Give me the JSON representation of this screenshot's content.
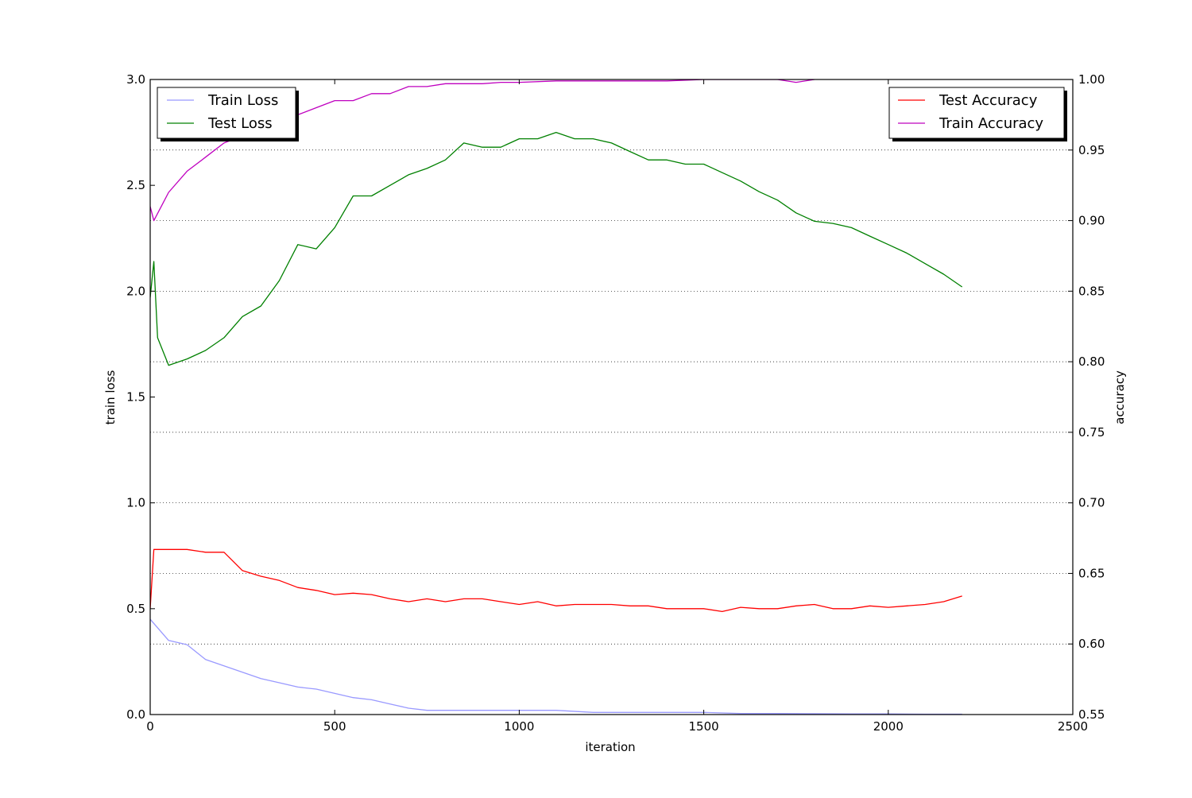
{
  "chart_data": {
    "type": "line",
    "xlabel": "iteration",
    "ylabel_left": "train loss",
    "ylabel_right": "accuracy",
    "xlim": [
      0,
      2500
    ],
    "ylim_left": [
      0,
      3.0
    ],
    "ylim_right": [
      0.55,
      1.0
    ],
    "grid": "dotted horizontal at right-axis ticks",
    "x_ticks": [
      "0",
      "500",
      "1000",
      "1500",
      "2000",
      "2500"
    ],
    "y_ticks_left": [
      "0.0",
      "0.5",
      "1.0",
      "1.5",
      "2.0",
      "2.5",
      "3.0"
    ],
    "y_ticks_right": [
      "0.55",
      "0.60",
      "0.65",
      "0.70",
      "0.75",
      "0.80",
      "0.85",
      "0.90",
      "0.95",
      "1.00"
    ],
    "legend_left": {
      "placement": "upper-left",
      "entries": [
        {
          "name": "Train Loss",
          "color": "#9999ff"
        },
        {
          "name": "Test Loss",
          "color": "#008000"
        }
      ]
    },
    "legend_right": {
      "placement": "upper-right",
      "entries": [
        {
          "name": "Test Accuracy",
          "color": "#ff0000"
        },
        {
          "name": "Train Accuracy",
          "color": "#bf00bf"
        }
      ]
    },
    "series": [
      {
        "name": "Train Loss",
        "axis": "left",
        "color": "#9999ff",
        "x": [
          0,
          50,
          100,
          150,
          200,
          250,
          300,
          350,
          400,
          450,
          500,
          550,
          600,
          650,
          700,
          750,
          800,
          850,
          900,
          950,
          1000,
          1100,
          1200,
          1300,
          1400,
          1500,
          1600,
          1700,
          1800,
          1900,
          2000,
          2100,
          2200
        ],
        "y": [
          0.45,
          0.35,
          0.33,
          0.26,
          0.23,
          0.2,
          0.17,
          0.15,
          0.13,
          0.12,
          0.1,
          0.08,
          0.07,
          0.05,
          0.03,
          0.02,
          0.02,
          0.02,
          0.02,
          0.02,
          0.02,
          0.02,
          0.01,
          0.01,
          0.01,
          0.01,
          0.005,
          0.005,
          0.004,
          0.003,
          0.003,
          0.002,
          0.002
        ]
      },
      {
        "name": "Test Loss",
        "axis": "left",
        "color": "#008000",
        "x": [
          0,
          10,
          20,
          50,
          100,
          150,
          200,
          250,
          300,
          350,
          400,
          450,
          500,
          550,
          600,
          650,
          700,
          750,
          800,
          850,
          900,
          950,
          1000,
          1050,
          1100,
          1150,
          1200,
          1250,
          1300,
          1350,
          1400,
          1450,
          1500,
          1550,
          1600,
          1650,
          1700,
          1750,
          1800,
          1850,
          1900,
          1950,
          2000,
          2050,
          2100,
          2150,
          2200
        ],
        "y": [
          1.97,
          2.14,
          1.78,
          1.65,
          1.68,
          1.72,
          1.78,
          1.88,
          1.93,
          2.05,
          2.22,
          2.2,
          2.3,
          2.45,
          2.45,
          2.5,
          2.55,
          2.58,
          2.62,
          2.7,
          2.68,
          2.68,
          2.72,
          2.72,
          2.75,
          2.72,
          2.72,
          2.7,
          2.66,
          2.62,
          2.62,
          2.6,
          2.6,
          2.56,
          2.52,
          2.47,
          2.43,
          2.37,
          2.33,
          2.32,
          2.3,
          2.26,
          2.22,
          2.18,
          2.13,
          2.08,
          2.02
        ]
      },
      {
        "name": "Test Accuracy",
        "axis": "right",
        "color": "#ff0000",
        "x": [
          0,
          10,
          50,
          100,
          150,
          200,
          250,
          300,
          350,
          400,
          450,
          500,
          550,
          600,
          650,
          700,
          750,
          800,
          850,
          900,
          950,
          1000,
          1050,
          1100,
          1150,
          1200,
          1250,
          1300,
          1350,
          1400,
          1450,
          1500,
          1550,
          1600,
          1650,
          1700,
          1750,
          1800,
          1850,
          1900,
          1950,
          2000,
          2050,
          2100,
          2150,
          2200
        ],
        "y": [
          0.625,
          0.667,
          0.667,
          0.667,
          0.665,
          0.665,
          0.652,
          0.648,
          0.645,
          0.64,
          0.638,
          0.635,
          0.636,
          0.635,
          0.632,
          0.63,
          0.632,
          0.63,
          0.632,
          0.632,
          0.63,
          0.628,
          0.63,
          0.627,
          0.628,
          0.628,
          0.628,
          0.627,
          0.627,
          0.625,
          0.625,
          0.625,
          0.623,
          0.626,
          0.625,
          0.625,
          0.627,
          0.628,
          0.625,
          0.625,
          0.627,
          0.626,
          0.627,
          0.628,
          0.63,
          0.634
        ]
      },
      {
        "name": "Train Accuracy",
        "axis": "right",
        "color": "#bf00bf",
        "x": [
          0,
          10,
          50,
          100,
          150,
          200,
          250,
          300,
          350,
          400,
          450,
          500,
          550,
          600,
          650,
          700,
          750,
          800,
          850,
          900,
          950,
          1000,
          1100,
          1200,
          1300,
          1400,
          1500,
          1600,
          1700,
          1750,
          1800
        ],
        "y": [
          0.91,
          0.9,
          0.92,
          0.935,
          0.945,
          0.955,
          0.96,
          0.965,
          0.97,
          0.975,
          0.98,
          0.985,
          0.985,
          0.99,
          0.99,
          0.995,
          0.995,
          0.997,
          0.997,
          0.997,
          0.998,
          0.998,
          0.999,
          0.999,
          0.999,
          0.999,
          1.0,
          1.0,
          1.0,
          0.998,
          1.0
        ]
      }
    ]
  }
}
